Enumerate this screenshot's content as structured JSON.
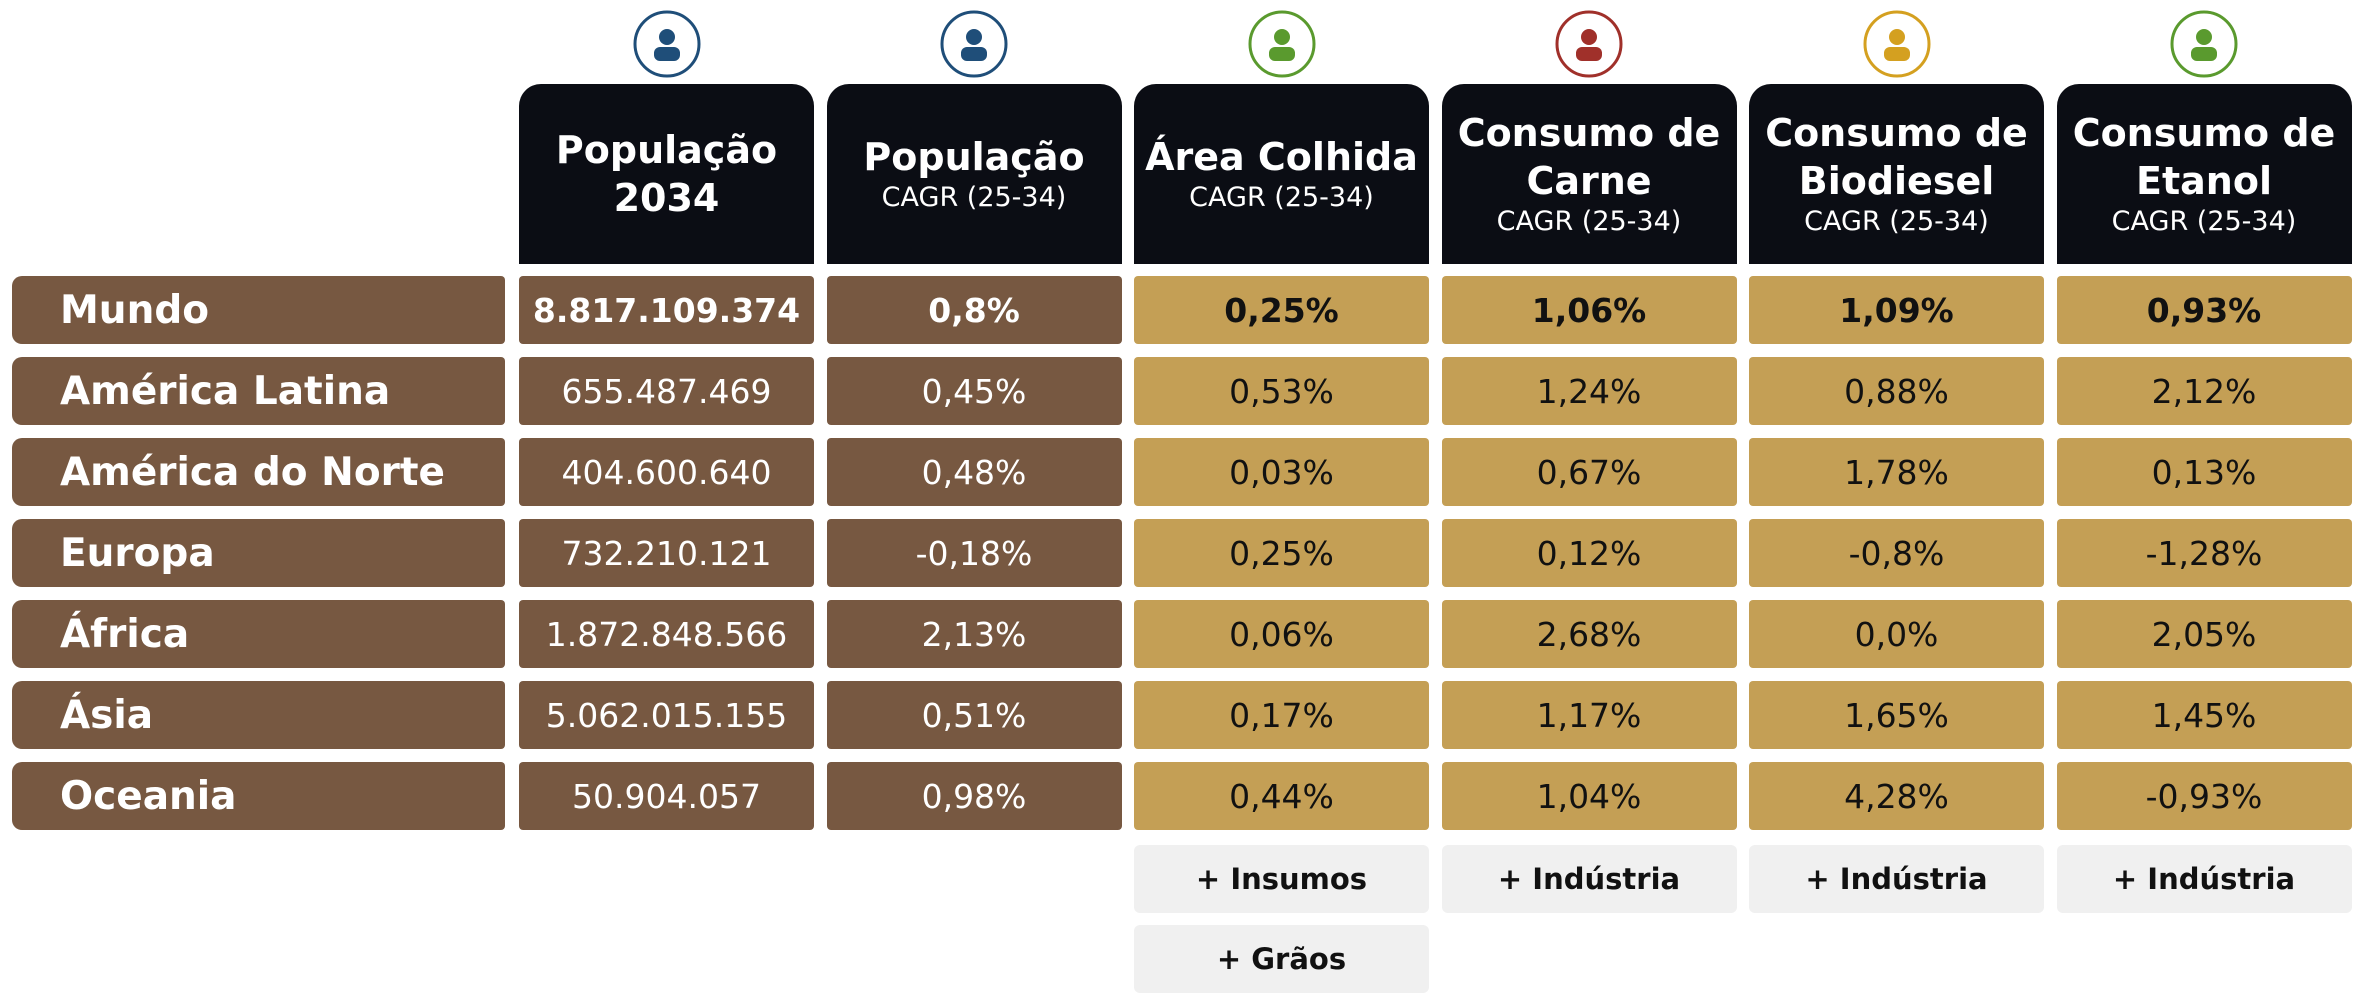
{
  "table": {
    "columns": [
      {
        "title": "População 2034"
      },
      {
        "title": "População",
        "subtitle": "CAGR (25-34)"
      },
      {
        "title": "Área Colhida",
        "subtitle": "CAGR (25-34)"
      },
      {
        "title": "Consumo de Carne",
        "subtitle": "CAGR (25-34)"
      },
      {
        "title": "Consumo de Biodiesel",
        "subtitle": "CAGR (25-34)"
      },
      {
        "title": "Consumo de Etanol",
        "subtitle": "CAGR (25-34)"
      }
    ],
    "rows": [
      {
        "label": "Mundo",
        "values": [
          "8.817.109.374",
          "0,8%",
          "0,25%",
          "1,06%",
          "1,09%",
          "0,93%"
        ]
      },
      {
        "label": "América Latina",
        "values": [
          "655.487.469",
          "0,45%",
          "0,53%",
          "1,24%",
          "0,88%",
          "2,12%"
        ]
      },
      {
        "label": "América do Norte",
        "values": [
          "404.600.640",
          "0,48%",
          "0,03%",
          "0,67%",
          "1,78%",
          "0,13%"
        ]
      },
      {
        "label": "Europa",
        "values": [
          "732.210.121",
          "-0,18%",
          "0,25%",
          "0,12%",
          "-0,8%",
          "-1,28%"
        ]
      },
      {
        "label": "África",
        "values": [
          "1.872.848.566",
          "2,13%",
          "0,06%",
          "2,68%",
          "0,0%",
          "2,05%"
        ]
      },
      {
        "label": "Ásia",
        "values": [
          "5.062.015.155",
          "0,51%",
          "0,17%",
          "1,17%",
          "1,65%",
          "1,45%"
        ]
      },
      {
        "label": "Oceania",
        "values": [
          "50.904.057",
          "0,98%",
          "0,44%",
          "1,04%",
          "4,28%",
          "-0,93%"
        ]
      }
    ],
    "footer": [
      [],
      [],
      [
        "+ Insumos",
        "+ Grãos"
      ],
      [
        "+ Indústria"
      ],
      [
        "+ Indústria"
      ],
      [
        "+ Indústria"
      ]
    ]
  }
}
